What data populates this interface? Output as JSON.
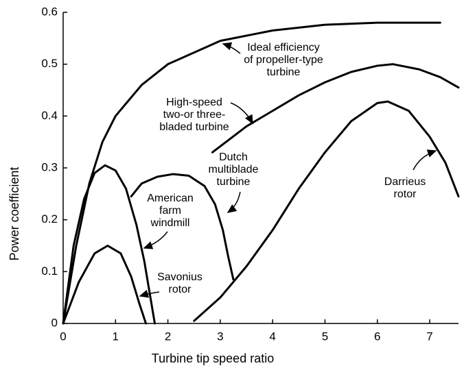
{
  "chart_data": {
    "type": "line",
    "xlabel": "Turbine tip speed ratio",
    "ylabel": "Power coefficient",
    "xlim": [
      0,
      7.55
    ],
    "ylim": [
      0,
      0.6
    ],
    "xticks": [
      0,
      1,
      2,
      3,
      4,
      5,
      6,
      7
    ],
    "yticks": [
      0,
      0.1,
      0.2,
      0.3,
      0.4,
      0.5,
      0.6
    ],
    "series": [
      {
        "color": "#000000",
        "x": [
          0,
          0.25,
          0.5,
          0.75,
          1,
          1.5,
          2,
          3,
          4,
          5,
          6,
          7.2
        ],
        "values": [
          0,
          0.15,
          0.27,
          0.35,
          0.4,
          0.46,
          0.5,
          0.545,
          0.565,
          0.576,
          0.58,
          0.58
        ]
      },
      {
        "color": "#000000",
        "x": [
          2.85,
          3.5,
          4,
          4.5,
          5,
          5.5,
          6,
          6.3,
          6.8,
          7.2,
          7.55
        ],
        "values": [
          0.33,
          0.38,
          0.41,
          0.44,
          0.465,
          0.485,
          0.497,
          0.5,
          0.49,
          0.475,
          0.455
        ]
      },
      {
        "color": "#000000",
        "x": [
          1.3,
          1.5,
          1.8,
          2.1,
          2.4,
          2.7,
          2.9,
          3.05,
          3.15,
          3.25
        ],
        "values": [
          0.245,
          0.27,
          0.283,
          0.288,
          0.285,
          0.265,
          0.23,
          0.18,
          0.13,
          0.085
        ]
      },
      {
        "color": "#000000",
        "x": [
          0,
          0.2,
          0.4,
          0.6,
          0.8,
          1,
          1.2,
          1.4,
          1.55,
          1.65,
          1.75
        ],
        "values": [
          0,
          0.15,
          0.24,
          0.29,
          0.305,
          0.295,
          0.26,
          0.19,
          0.12,
          0.06,
          0
        ]
      },
      {
        "color": "#000000",
        "x": [
          0,
          0.3,
          0.6,
          0.85,
          1.1,
          1.3,
          1.45,
          1.58
        ],
        "values": [
          0,
          0.08,
          0.135,
          0.15,
          0.135,
          0.09,
          0.04,
          0
        ]
      },
      {
        "color": "#000000",
        "x": [
          2.5,
          3,
          3.5,
          4,
          4.5,
          5,
          5.5,
          6,
          6.2,
          6.6,
          7,
          7.3,
          7.55
        ],
        "values": [
          0.005,
          0.05,
          0.11,
          0.18,
          0.26,
          0.33,
          0.39,
          0.425,
          0.428,
          0.41,
          0.36,
          0.31,
          0.245
        ]
      }
    ],
    "annotations": [
      {
        "lines": [
          "Ideal efficiency",
          "of propeller-type",
          "turbine"
        ]
      },
      {
        "lines": [
          "High-speed",
          "two-or three-",
          "bladed turbine"
        ]
      },
      {
        "lines": [
          "Dutch",
          "multiblade",
          "turbine"
        ]
      },
      {
        "lines": [
          "American",
          "farm",
          "windmill"
        ]
      },
      {
        "lines": [
          "Savonius",
          "rotor"
        ]
      },
      {
        "lines": [
          "Darrieus",
          "rotor"
        ]
      }
    ]
  }
}
